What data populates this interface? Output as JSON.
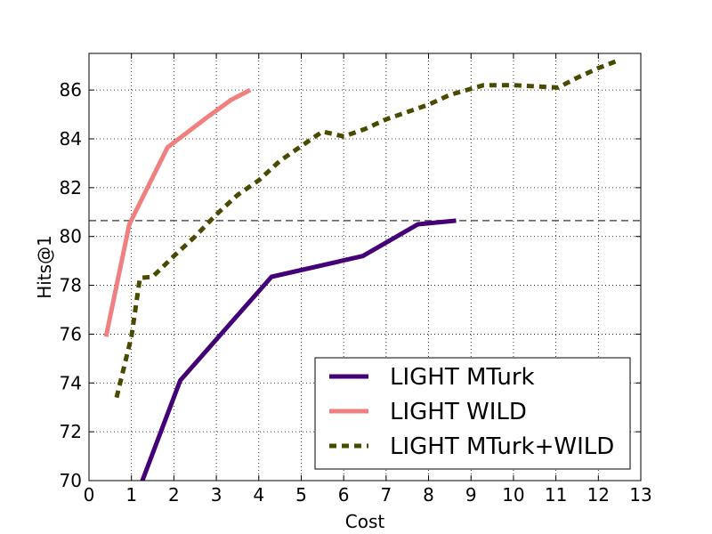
{
  "chart_data": {
    "type": "line",
    "title": "",
    "xlabel": "Cost",
    "ylabel": "Hits@1",
    "xlim": [
      0,
      13
    ],
    "ylim": [
      70,
      87.5
    ],
    "xticks": [
      0,
      1,
      2,
      3,
      4,
      5,
      6,
      7,
      8,
      9,
      10,
      11,
      12,
      13
    ],
    "yticks": [
      70,
      72,
      74,
      76,
      78,
      80,
      82,
      84,
      86
    ],
    "grid": true,
    "legend_position": "lower-right",
    "reference_line": {
      "y": 80.65,
      "style": "dashed",
      "color": "#555555"
    },
    "series": [
      {
        "name": "LIGHT MTurk",
        "color": "#440077",
        "dash": "solid",
        "x": [
          1.15,
          2.15,
          4.3,
          6.45,
          7.75,
          8.65
        ],
        "y": [
          69.5,
          74.1,
          78.35,
          79.2,
          80.5,
          80.65
        ]
      },
      {
        "name": "LIGHT WILD",
        "color": "#f08080",
        "dash": "solid",
        "x": [
          0.4,
          0.95,
          1.85,
          2.8,
          3.35,
          3.8
        ],
        "y": [
          75.9,
          80.5,
          83.65,
          84.9,
          85.6,
          86.0
        ]
      },
      {
        "name": "LIGHT MTurk+WILD",
        "color": "#4a4a00",
        "dash": "dotted",
        "x": [
          0.65,
          1.0,
          1.2,
          1.5,
          2.0,
          2.5,
          3.0,
          3.5,
          4.0,
          4.5,
          5.0,
          5.5,
          6.0,
          6.5,
          7.0,
          7.5,
          8.0,
          8.5,
          9.3,
          10.0,
          11.05,
          11.5,
          12.0,
          12.45
        ],
        "y": [
          73.4,
          75.9,
          78.3,
          78.35,
          79.2,
          80.0,
          80.9,
          81.7,
          82.3,
          83.1,
          83.7,
          84.3,
          84.1,
          84.4,
          84.8,
          85.1,
          85.4,
          85.8,
          86.2,
          86.2,
          86.1,
          86.5,
          86.9,
          87.2
        ]
      }
    ]
  }
}
